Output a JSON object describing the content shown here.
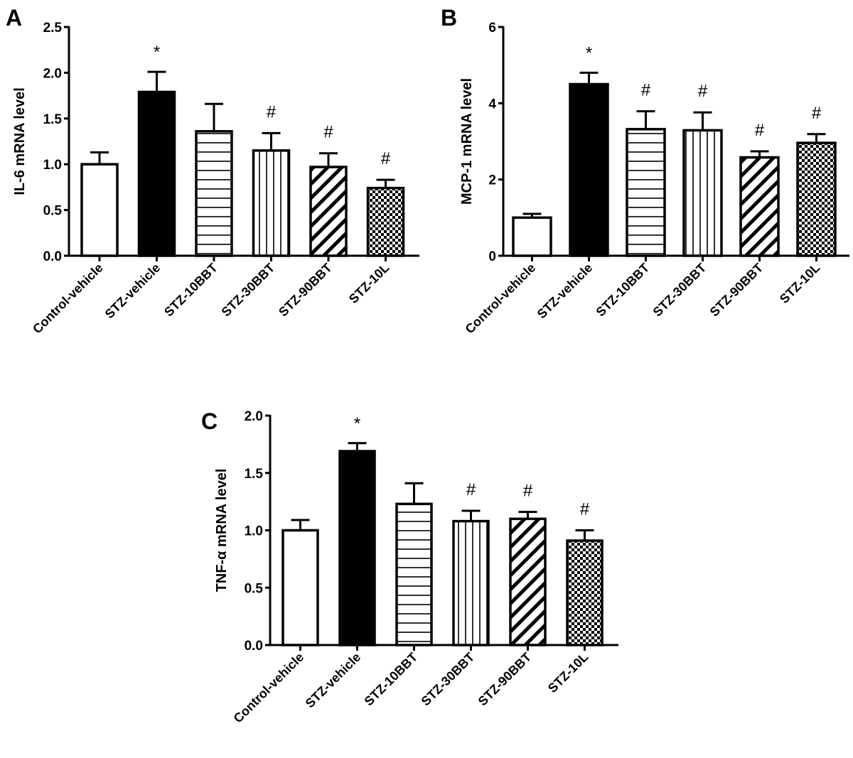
{
  "chart_data": [
    {
      "panel_label": "A",
      "type": "bar",
      "categories": [
        "Control-vehicle",
        "STZ-vehicle",
        "STZ-10BBT",
        "STZ-30BBT",
        "STZ-90BBT",
        "STZ-10L"
      ],
      "values": [
        1.0,
        1.79,
        1.36,
        1.15,
        0.97,
        0.74
      ],
      "errors": [
        0.13,
        0.22,
        0.3,
        0.19,
        0.15,
        0.09
      ],
      "annotations": [
        "",
        "*",
        "",
        "#",
        "#",
        "#"
      ],
      "ylabel": "IL-6 mRNA level",
      "xlabel": "",
      "ylim": [
        0,
        2.5
      ],
      "yticks": [
        "0.0",
        "0.5",
        "1.0",
        "1.5",
        "2.0",
        "2.5"
      ],
      "fills": [
        "white",
        "black",
        "horizontal-lines",
        "vertical-lines",
        "diagonal-lines",
        "checkerboard"
      ]
    },
    {
      "panel_label": "B",
      "type": "bar",
      "categories": [
        "Control-vehicle",
        "STZ-vehicle",
        "STZ-10BBT",
        "STZ-30BBT",
        "STZ-90BBT",
        "STZ-10L"
      ],
      "values": [
        1.0,
        4.5,
        3.32,
        3.29,
        2.58,
        2.96
      ],
      "errors": [
        0.1,
        0.3,
        0.47,
        0.47,
        0.16,
        0.23
      ],
      "annotations": [
        "",
        "*",
        "#",
        "#",
        "#",
        "#"
      ],
      "ylabel": "MCP-1 mRNA level",
      "xlabel": "",
      "ylim": [
        0,
        6
      ],
      "yticks": [
        "0",
        "2",
        "4",
        "6"
      ],
      "fills": [
        "white",
        "black",
        "horizontal-lines",
        "vertical-lines",
        "diagonal-lines",
        "checkerboard"
      ]
    },
    {
      "panel_label": "C",
      "type": "bar",
      "categories": [
        "Control-vehicle",
        "STZ-vehicle",
        "STZ-10BBT",
        "STZ-30BBT",
        "STZ-90BBT",
        "STZ-10L"
      ],
      "values": [
        1.0,
        1.69,
        1.23,
        1.08,
        1.1,
        0.91
      ],
      "errors": [
        0.09,
        0.07,
        0.18,
        0.09,
        0.06,
        0.09
      ],
      "annotations": [
        "",
        "*",
        "",
        "#",
        "#",
        "#"
      ],
      "ylabel": "TNF-α mRNA level",
      "xlabel": "",
      "ylim": [
        0,
        2.0
      ],
      "yticks": [
        "0.0",
        "0.5",
        "1.0",
        "1.5",
        "2.0"
      ],
      "fills": [
        "white",
        "black",
        "horizontal-lines",
        "vertical-lines",
        "diagonal-lines",
        "checkerboard"
      ]
    }
  ]
}
